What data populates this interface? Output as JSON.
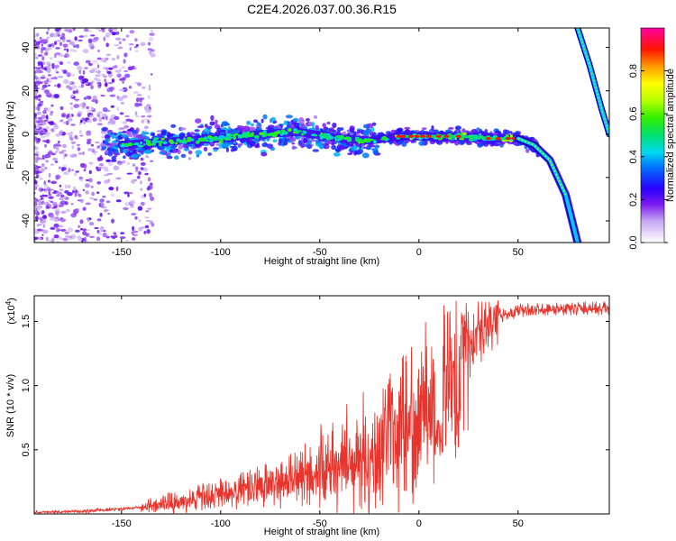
{
  "title": "C2E4.2026.037.00.36.R15",
  "chart_data": [
    {
      "type": "heatmap",
      "name": "spectrogram",
      "xlabel": "Height of straight line (km)",
      "ylabel": "Frequency (Hz)",
      "xlim": [
        -194,
        96
      ],
      "ylim": [
        -50,
        49
      ],
      "xticks": [
        -150,
        -100,
        -50,
        0,
        50
      ],
      "yticks": [
        40,
        20,
        0,
        -20,
        -40
      ],
      "ridge": [
        {
          "x": -150,
          "y": -5
        },
        {
          "x": -120,
          "y": -3
        },
        {
          "x": -100,
          "y": -2
        },
        {
          "x": -80,
          "y": 0
        },
        {
          "x": -60,
          "y": 1
        },
        {
          "x": -40,
          "y": -2
        },
        {
          "x": -25,
          "y": -3
        },
        {
          "x": -10,
          "y": -1
        },
        {
          "x": 0,
          "y": -1
        },
        {
          "x": 20,
          "y": -1
        },
        {
          "x": 40,
          "y": -2
        },
        {
          "x": 50,
          "y": -2
        },
        {
          "x": 58,
          "y": -5
        },
        {
          "x": 66,
          "y": -12
        },
        {
          "x": 74,
          "y": -28
        },
        {
          "x": 80,
          "y": -50
        }
      ],
      "aliased_ridge": [
        {
          "x": 80,
          "y": 49
        },
        {
          "x": 86,
          "y": 32
        },
        {
          "x": 92,
          "y": 12
        },
        {
          "x": 96,
          "y": 0
        }
      ],
      "colorbar": {
        "label": "Normalized spectral amplitude",
        "range": [
          0,
          1
        ],
        "ticks": [
          "0.0",
          "0.2",
          "0.4",
          "0.6",
          "0.8"
        ]
      }
    },
    {
      "type": "line",
      "name": "snr",
      "xlabel": "Height of straight line (km)",
      "ylabel": "SNR (10 * v/v)",
      "multiplier_label": "(x10",
      "multiplier_exp": "4",
      "multiplier_close": ")",
      "color": "#e8342c",
      "xlim": [
        -194,
        96
      ],
      "ylim": [
        0,
        1.7
      ],
      "xticks": [
        -150,
        -100,
        -50,
        0,
        50
      ],
      "yticks": [
        "0.5",
        "1.0",
        "1.5"
      ],
      "trend": [
        {
          "x": -194,
          "y": 0.01
        },
        {
          "x": -170,
          "y": 0.02
        },
        {
          "x": -150,
          "y": 0.04
        },
        {
          "x": -130,
          "y": 0.07
        },
        {
          "x": -110,
          "y": 0.12
        },
        {
          "x": -90,
          "y": 0.18
        },
        {
          "x": -70,
          "y": 0.24
        },
        {
          "x": -55,
          "y": 0.3
        },
        {
          "x": -40,
          "y": 0.38
        },
        {
          "x": -25,
          "y": 0.48
        },
        {
          "x": -10,
          "y": 0.62
        },
        {
          "x": 0,
          "y": 0.8
        },
        {
          "x": 10,
          "y": 1.02
        },
        {
          "x": 20,
          "y": 1.2
        },
        {
          "x": 30,
          "y": 1.42
        },
        {
          "x": 40,
          "y": 1.55
        },
        {
          "x": 55,
          "y": 1.59
        },
        {
          "x": 75,
          "y": 1.6
        },
        {
          "x": 96,
          "y": 1.6
        }
      ]
    }
  ],
  "colors": {
    "axis": "#000000",
    "snr_line": "#e8342c"
  }
}
